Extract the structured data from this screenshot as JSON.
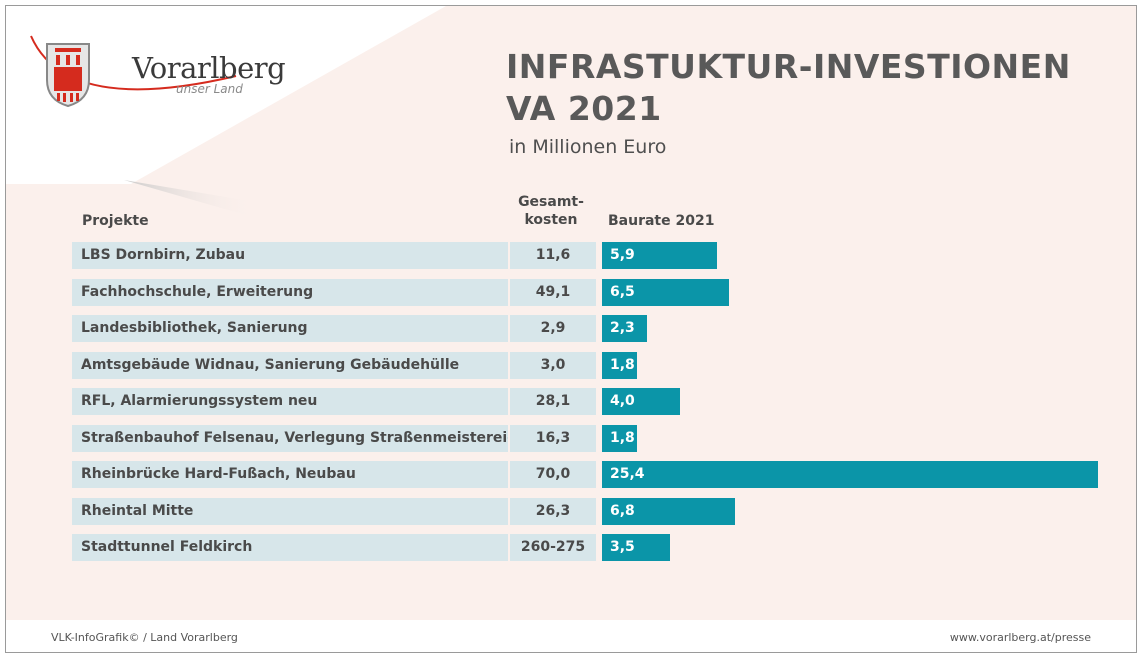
{
  "title_line1": "INFRASTUKTUR-INVESTIONEN",
  "title_line2": "VA 2021",
  "subtitle": "in Millionen Euro",
  "logo": {
    "name": "Vorarlberg",
    "tagline": "unser Land"
  },
  "colors": {
    "bar": "#0b95a8",
    "row_bg": "#d7e6ea",
    "logo_red": "#d52b1e",
    "background": "#fbf0ec"
  },
  "chart_data": {
    "type": "bar",
    "orientation": "horizontal",
    "column_headers": {
      "project": "Projekte",
      "total_cost_line1": "Gesamt-",
      "total_cost_line2": "kosten",
      "rate": "Baurate 2021"
    },
    "categories": [
      "LBS Dornbirn, Zubau",
      "Fachhochschule, Erweiterung",
      "Landesbibliothek, Sanierung",
      "Amtsgebäude Widnau, Sanierung Gebäudehülle",
      "RFL, Alarmierungssystem neu",
      "Straßenbauhof Felsenau, Verlegung Straßenmeistereien",
      "Rheinbrücke Hard-Fußach, Neubau",
      "Rheintal Mitte",
      "Stadttunnel Feldkirch"
    ],
    "total_cost": [
      "11,6",
      "49,1",
      "2,9",
      "3,0",
      "28,1",
      "16,3",
      "70,0",
      "26,3",
      "260-275"
    ],
    "values": [
      5.9,
      6.5,
      2.3,
      1.8,
      4.0,
      1.8,
      25.4,
      6.8,
      3.5
    ],
    "value_labels": [
      "5,9",
      "6,5",
      "2,3",
      "1,8",
      "4,0",
      "1,8",
      "25,4",
      "6,8",
      "3,5"
    ],
    "xlim": [
      0,
      25.4
    ],
    "grid": false,
    "legend": "none"
  },
  "footer": {
    "left": "VLK-InfoGrafik© / Land Vorarlberg",
    "right": "www.vorarlberg.at/presse"
  }
}
